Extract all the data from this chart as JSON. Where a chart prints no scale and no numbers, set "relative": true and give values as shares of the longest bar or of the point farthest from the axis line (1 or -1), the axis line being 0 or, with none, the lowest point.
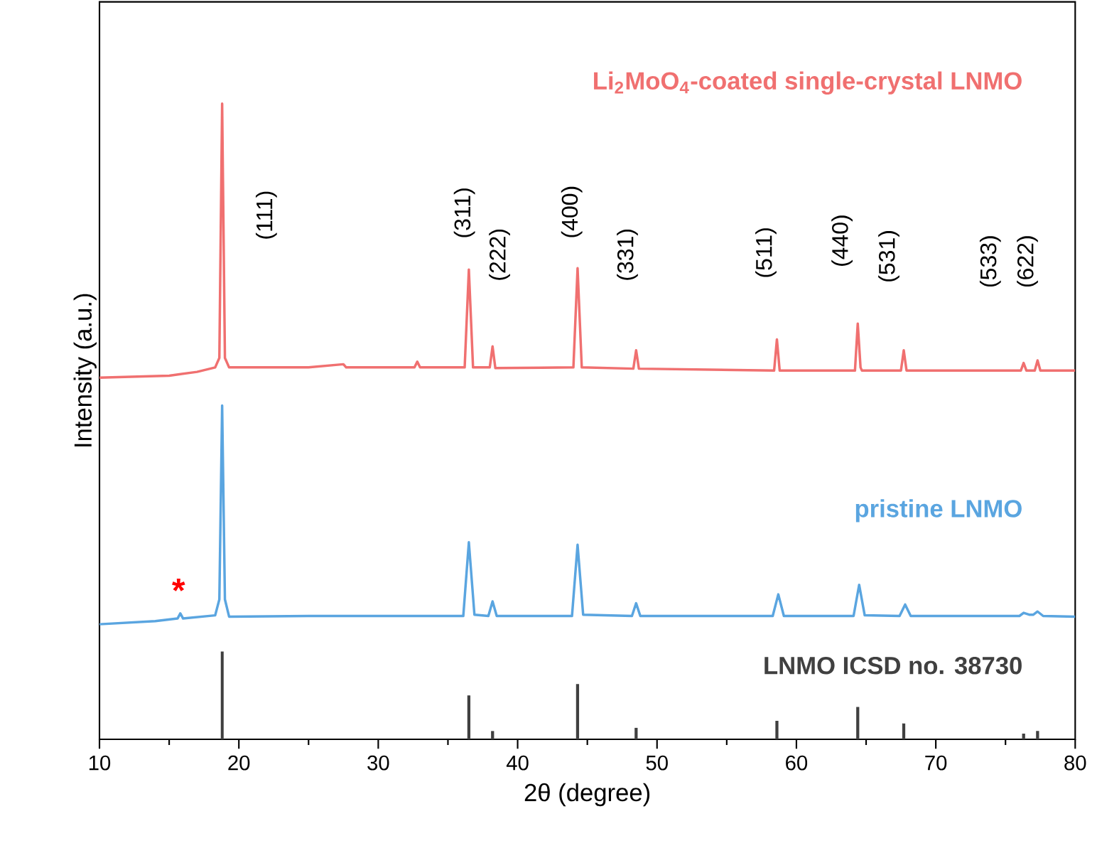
{
  "chart_data": {
    "type": "line",
    "relative": true,
    "xlabel": "2θ (degree)",
    "ylabel": "Intensity (a.u.)",
    "xlim": [
      10,
      80
    ],
    "xticks": [
      10,
      20,
      30,
      40,
      50,
      60,
      70,
      80
    ],
    "grid": false,
    "marker": "none",
    "line_style": "solid",
    "series": [
      {
        "name": "Li$_{2}$MoO$_{4}$-coated single-crystal LNMO",
        "color": "#f07070",
        "x": [
          10,
          15,
          17,
          18.3,
          18.6,
          18.8,
          19.0,
          19.3,
          25,
          27.5,
          27.7,
          32.6,
          32.8,
          33,
          36.2,
          36.5,
          36.8,
          38.0,
          38.2,
          38.4,
          44.0,
          44.3,
          44.6,
          48.3,
          48.5,
          48.7,
          58.4,
          58.6,
          58.8,
          64.2,
          64.4,
          64.6,
          64.7,
          67.5,
          67.7,
          67.9,
          76.1,
          76.3,
          76.5,
          77.1,
          77.3,
          77.5,
          80
        ],
        "values": [
          0.569,
          0.572,
          0.578,
          0.585,
          0.6,
          1.0,
          0.6,
          0.585,
          0.585,
          0.59,
          0.585,
          0.585,
          0.594,
          0.585,
          0.585,
          0.739,
          0.585,
          0.585,
          0.618,
          0.584,
          0.585,
          0.741,
          0.585,
          0.583,
          0.612,
          0.583,
          0.58,
          0.629,
          0.58,
          0.58,
          0.654,
          0.585,
          0.58,
          0.58,
          0.612,
          0.58,
          0.58,
          0.592,
          0.58,
          0.58,
          0.596,
          0.58,
          0.58
        ]
      },
      {
        "name": "pristine LNMO",
        "color": "#5aa5e0",
        "x": [
          10,
          14,
          15.6,
          15.8,
          16.0,
          18.3,
          18.6,
          18.8,
          19.0,
          19.3,
          25,
          36.1,
          36.5,
          36.9,
          37.9,
          38.2,
          38.5,
          43.9,
          44.3,
          44.7,
          48.2,
          48.5,
          48.8,
          58.3,
          58.7,
          59.1,
          64.1,
          64.5,
          64.9,
          67.4,
          67.8,
          68.2,
          76.0,
          76.3,
          76.7,
          77.0,
          77.3,
          77.7,
          80
        ],
        "values": [
          0.181,
          0.186,
          0.19,
          0.198,
          0.19,
          0.195,
          0.22,
          0.525,
          0.22,
          0.193,
          0.194,
          0.194,
          0.31,
          0.196,
          0.194,
          0.217,
          0.194,
          0.194,
          0.306,
          0.196,
          0.194,
          0.214,
          0.194,
          0.194,
          0.228,
          0.194,
          0.194,
          0.243,
          0.195,
          0.194,
          0.212,
          0.194,
          0.194,
          0.199,
          0.196,
          0.196,
          0.201,
          0.194,
          0.193
        ]
      },
      {
        "name": "LNMO ICSD no. 38730",
        "type": "bar",
        "color": "#404040",
        "x": [
          18.8,
          36.5,
          38.2,
          44.3,
          48.5,
          58.6,
          64.4,
          67.7,
          76.3,
          77.3
        ],
        "values": [
          0.138,
          0.069,
          0.013,
          0.087,
          0.018,
          0.029,
          0.051,
          0.025,
          0.009,
          0.013
        ]
      }
    ],
    "annotations": [
      "*",
      "(111)",
      "(311)",
      "(222)",
      "(400)",
      "(331)",
      "(511)",
      "(440)",
      "(531)",
      "(533)",
      "(622)"
    ]
  }
}
